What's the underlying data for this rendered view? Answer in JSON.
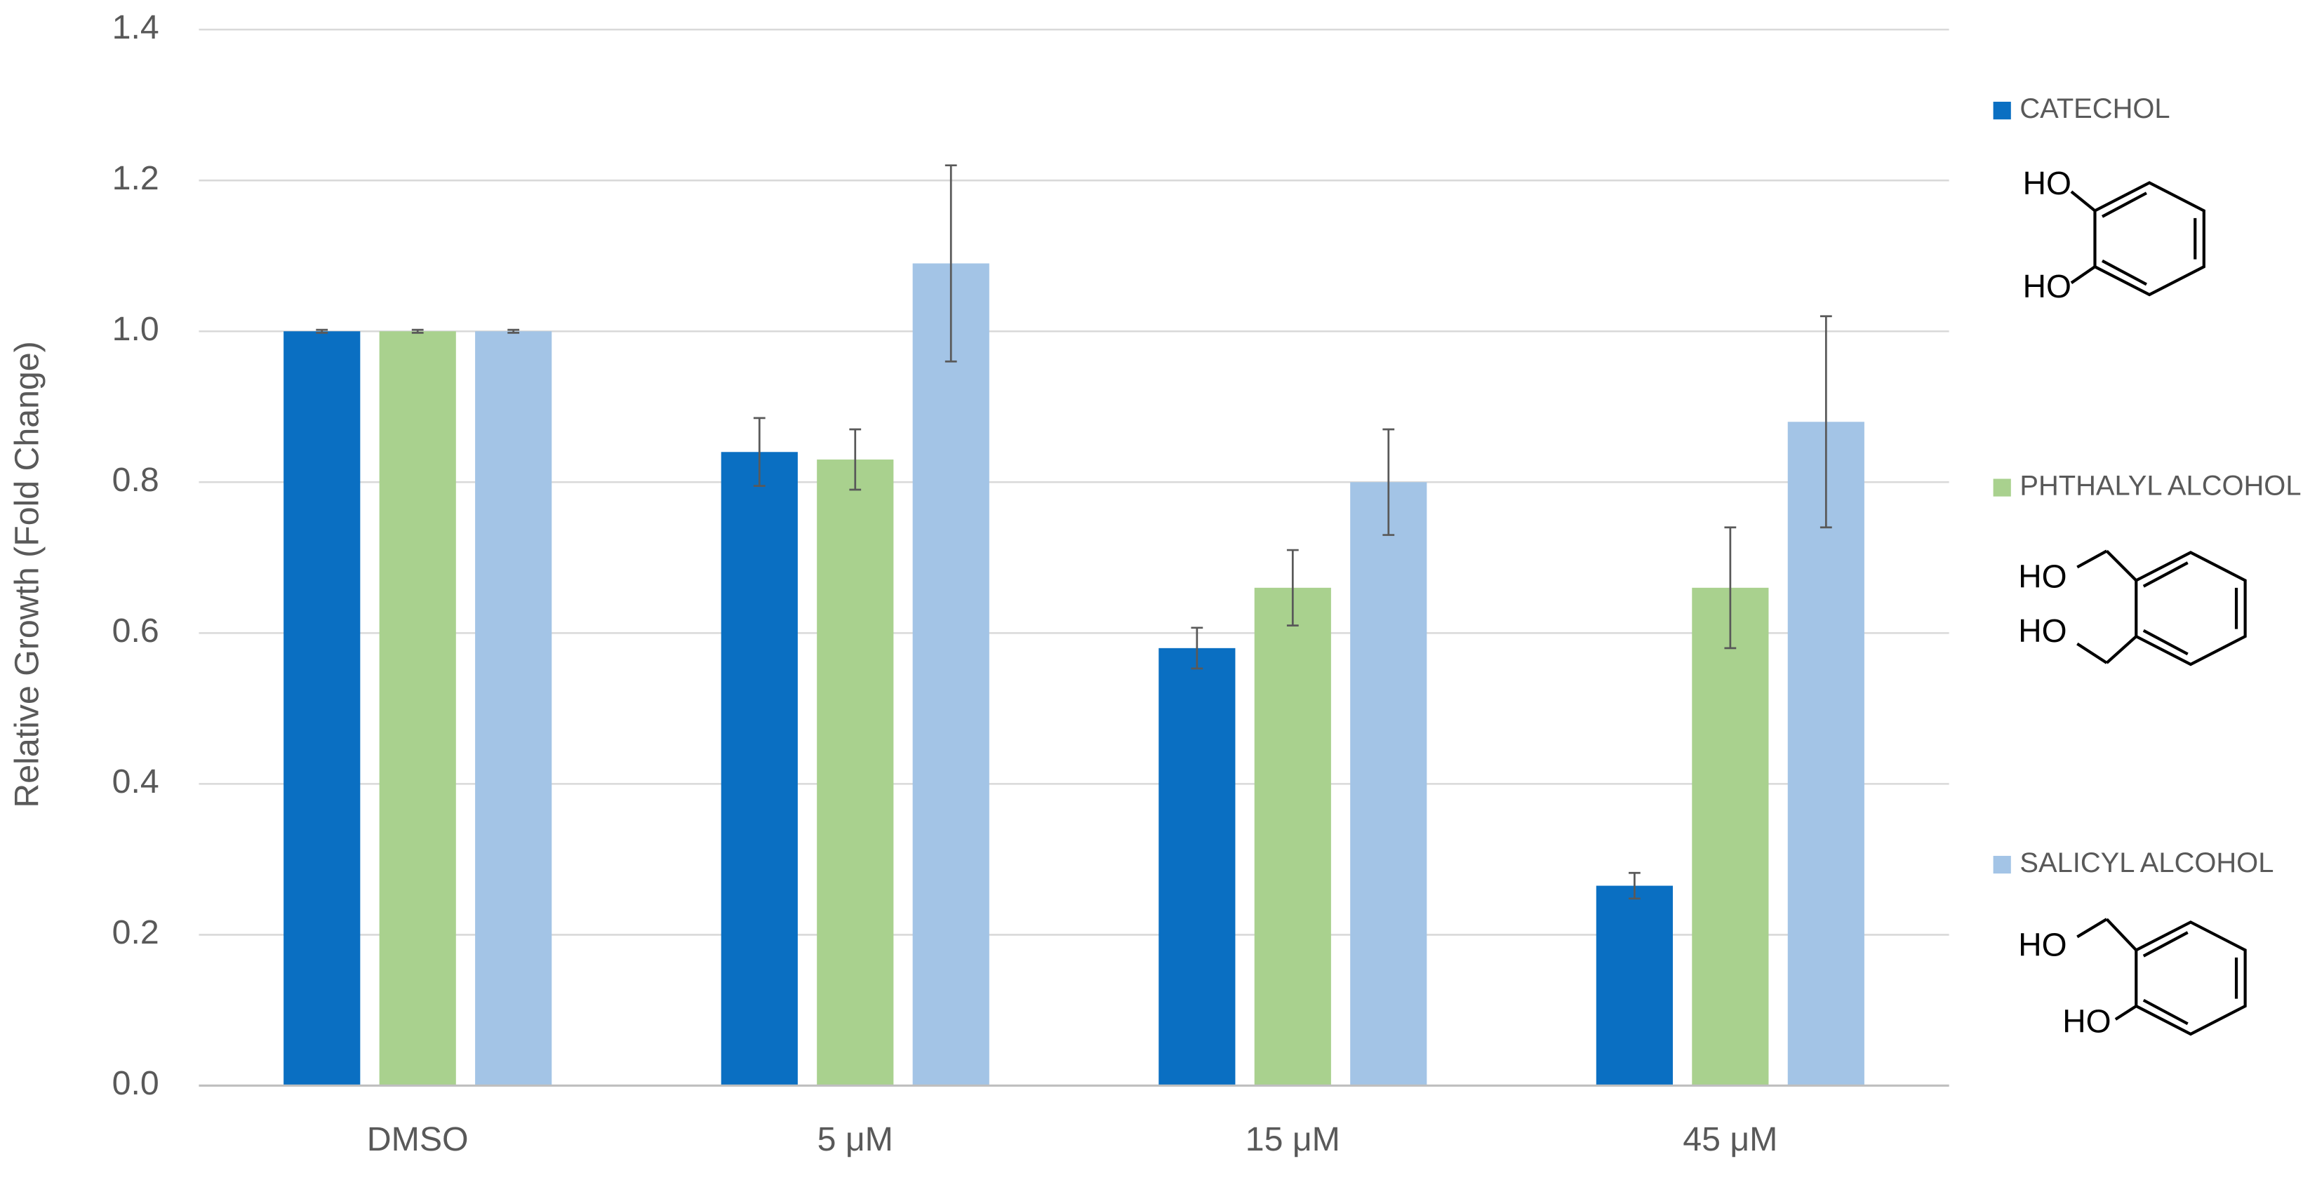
{
  "chart_data": {
    "type": "bar",
    "y_label": "Relative Growth (Fold Change)",
    "categories": [
      "DMSO",
      "5 μM",
      "15 μM",
      "45 μM"
    ],
    "series": [
      {
        "name": "CATECHOL",
        "color": "#0a6fc2",
        "values": [
          1.0,
          0.84,
          0.58,
          0.265
        ],
        "errors": [
          0.002,
          0.045,
          0.027,
          0.017
        ],
        "structure_labels": [
          "HO",
          "HO"
        ]
      },
      {
        "name": "PHTHALYL ALCOHOL",
        "color": "#a9d18e",
        "values": [
          1.0,
          0.83,
          0.66,
          0.66
        ],
        "errors": [
          0.002,
          0.04,
          0.05,
          0.08
        ],
        "structure_labels": [
          "HO",
          "HO"
        ]
      },
      {
        "name": "SALICYL ALCOHOL",
        "color": "#a3c4e6",
        "values": [
          1.0,
          1.09,
          0.8,
          0.88
        ],
        "errors": [
          0.002,
          0.13,
          0.07,
          0.14
        ],
        "structure_labels": [
          "HO",
          "HO"
        ]
      }
    ],
    "ylim": [
      0,
      1.4
    ],
    "yticks": [
      {
        "value": 0,
        "label": "0.0"
      },
      0.2,
      0.4,
      0.6,
      0.8,
      {
        "value": 1,
        "label": "1.0"
      },
      1.2,
      1.4
    ],
    "grid": true
  }
}
